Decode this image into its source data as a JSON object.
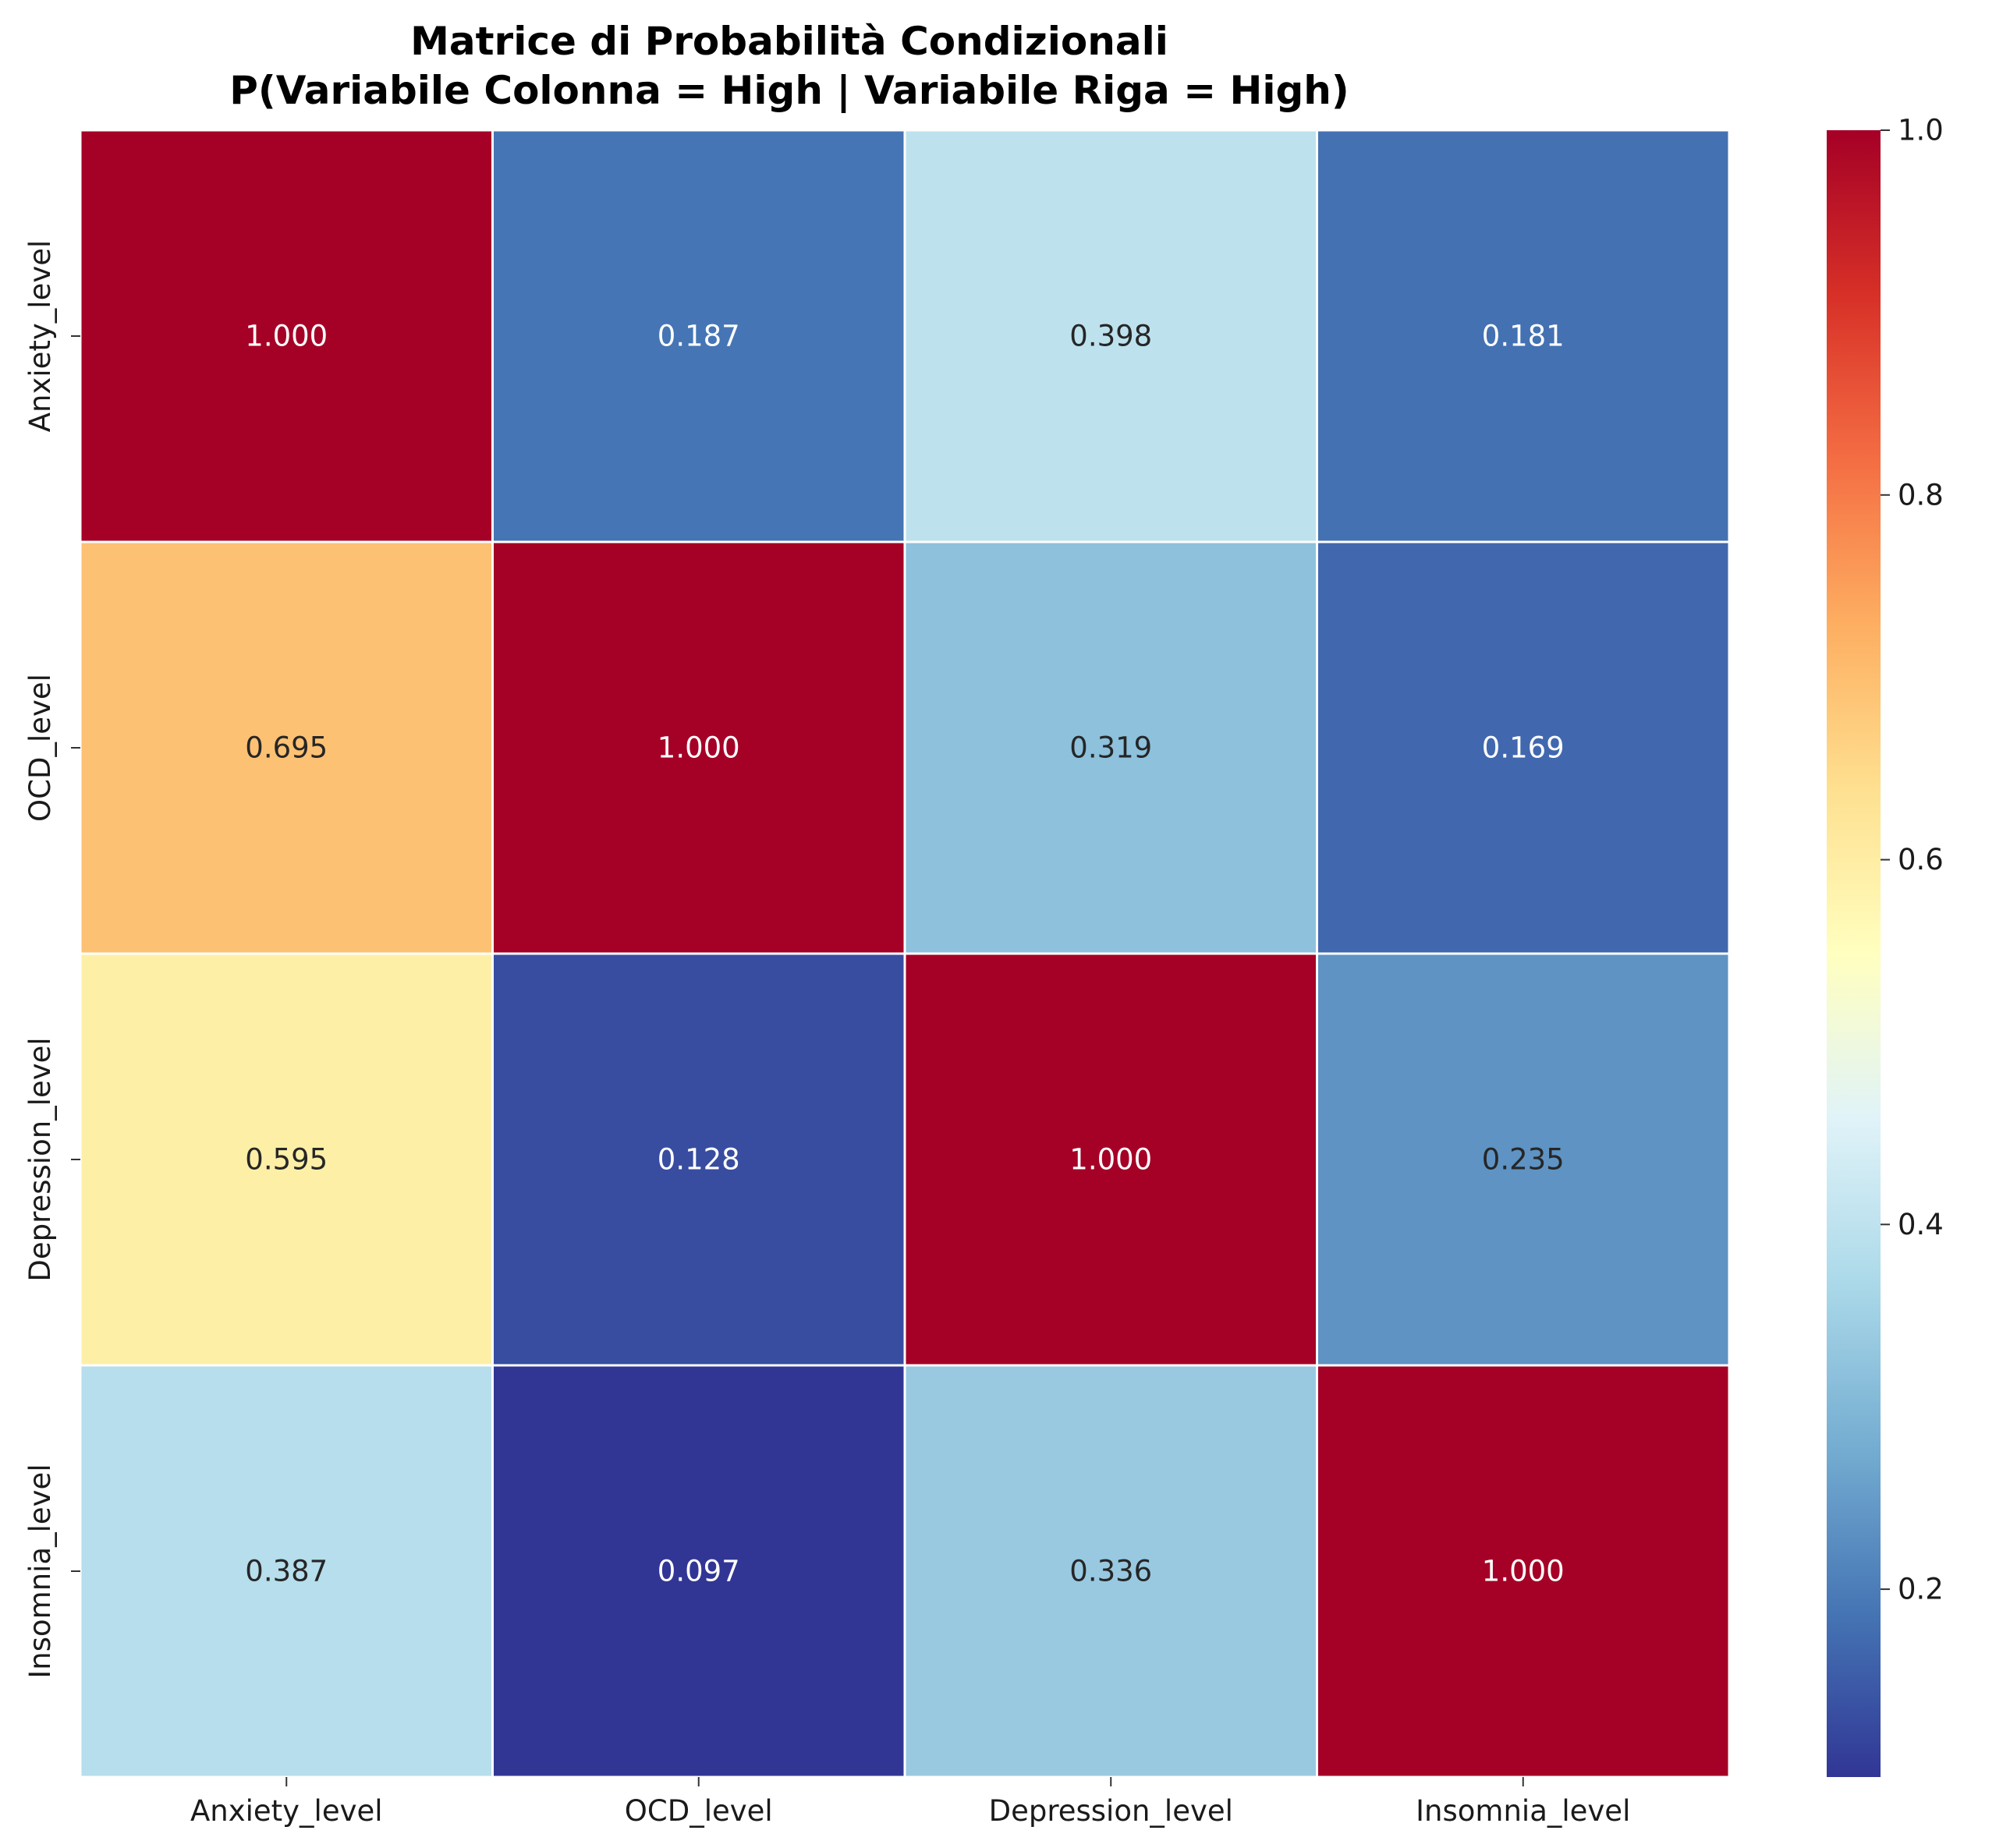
{
  "chart_data": {
    "type": "heatmap",
    "title": "Matrice di Probabilità Condizionali",
    "subtitle": "P(Variabile Colonna = High | Variabile Riga = High)",
    "rows": [
      "Anxiety_level",
      "OCD_level",
      "Depression_level",
      "Insomnia_level"
    ],
    "columns": [
      "Anxiety_level",
      "OCD_level",
      "Depression_level",
      "Insomnia_level"
    ],
    "values": [
      [
        1.0,
        0.187,
        0.398,
        0.181
      ],
      [
        0.695,
        1.0,
        0.319,
        0.169
      ],
      [
        0.595,
        0.128,
        1.0,
        0.235
      ],
      [
        0.387,
        0.097,
        0.336,
        1.0
      ]
    ],
    "value_labels": [
      [
        "1.000",
        "0.187",
        "0.398",
        "0.181"
      ],
      [
        "0.695",
        "1.000",
        "0.319",
        "0.169"
      ],
      [
        "0.595",
        "0.128",
        "1.000",
        "0.235"
      ],
      [
        "0.387",
        "0.097",
        "0.336",
        "1.000"
      ]
    ],
    "colormap": "RdYlBu_r",
    "colorbar": {
      "range": [
        0.097,
        1.0
      ],
      "ticks": [
        0.2,
        0.4,
        0.6,
        0.8,
        1.0
      ],
      "tick_labels": [
        "0.2",
        "0.4",
        "0.6",
        "0.8",
        "1.0"
      ]
    },
    "colors": {
      "text_dark": "#262626",
      "text_light": "#ffffff",
      "cell_border": "#ffffff"
    }
  }
}
